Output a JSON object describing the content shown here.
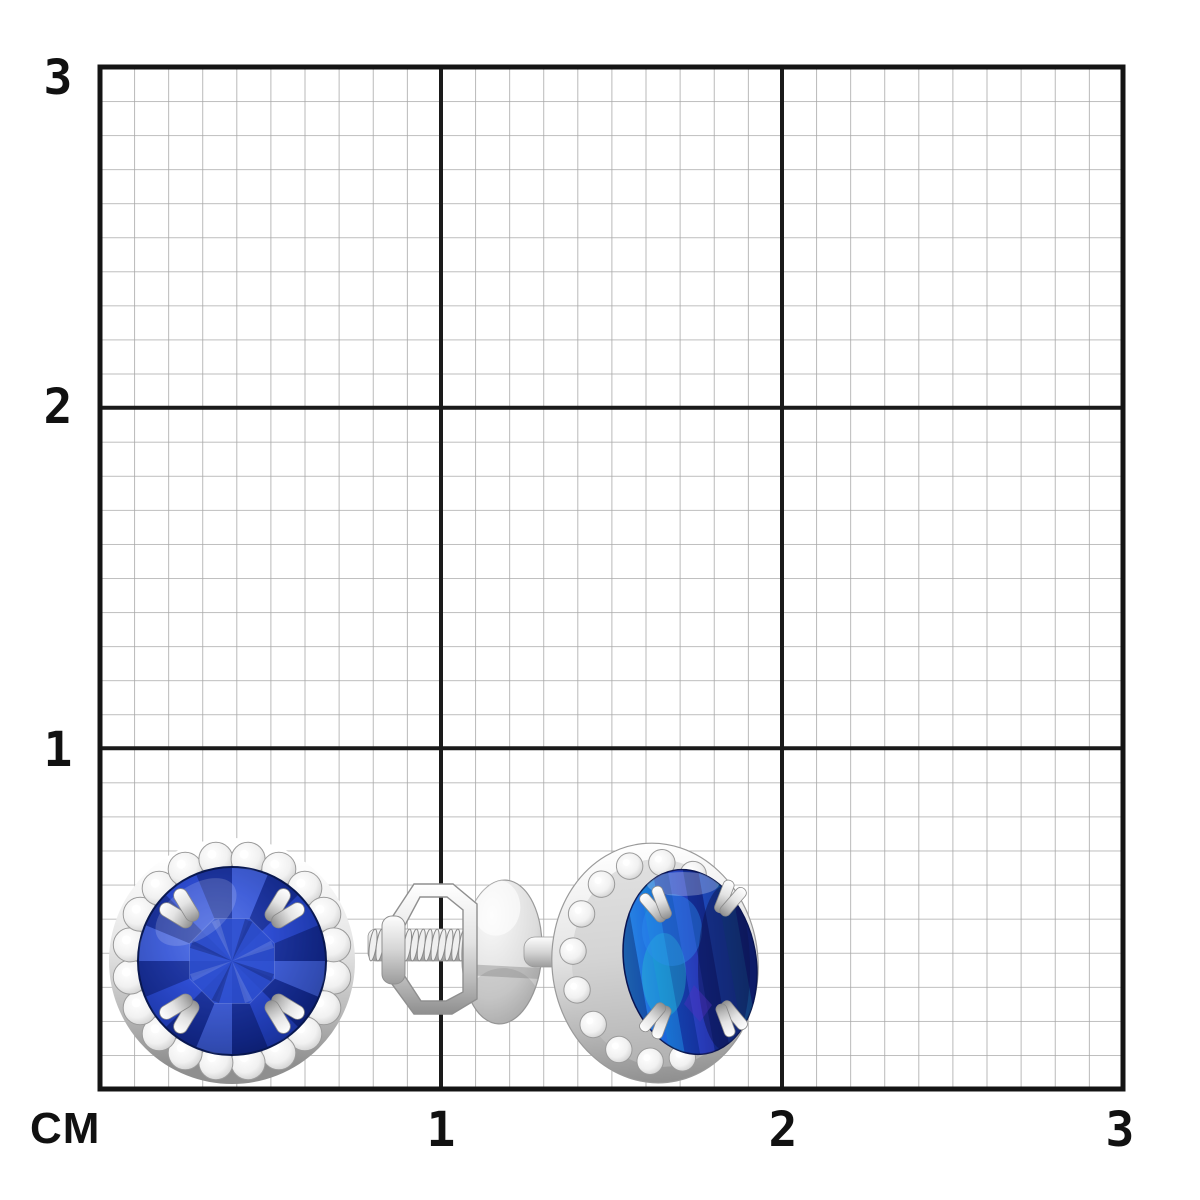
{
  "ruler": {
    "unit_label": "CM",
    "left_ticks": [
      "3",
      "2",
      "1"
    ],
    "bottom_ticks": [
      "1",
      "2",
      "3"
    ],
    "minor_per_major": 10,
    "major_step_cm": 1
  },
  "grid": {
    "minor_color": "#a8a8a8",
    "major_color": "#1a1a1a",
    "border_color": "#141414",
    "background": "#ffffff"
  },
  "product": {
    "name": "Blue sapphire halo stud earrings with diamond pave and screw backs",
    "metal_color": "#c9c9c9",
    "gem_front_color": "#1c3cba",
    "gem_side_color": "#1a56d0",
    "items": [
      "left earring front view",
      "screw back with threaded post, hexagonal scroll and friction disc",
      "right earring three-quarter view"
    ]
  }
}
